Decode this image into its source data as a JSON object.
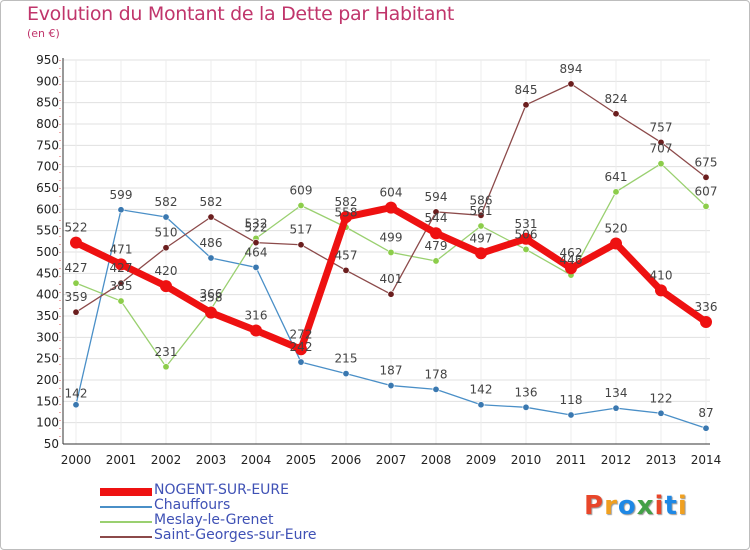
{
  "header": {
    "title": "Evolution du Montant de la Dette par Habitant",
    "subtitle": "(en €)"
  },
  "logo": {
    "letters": [
      "P",
      "r",
      "o",
      "x",
      "i",
      "t",
      "i"
    ],
    "colors": [
      "#e8462a",
      "#f0a020",
      "#1e88e5",
      "#43a047",
      "#e8462a",
      "#1e88e5",
      "#f0a020"
    ]
  },
  "chart_data": {
    "type": "line",
    "title": "Evolution du Montant de la Dette par Habitant",
    "subtitle": "(en €)",
    "x": [
      "2000",
      "2001",
      "2002",
      "2003",
      "2004",
      "2005",
      "2006",
      "2007",
      "2008",
      "2009",
      "2010",
      "2011",
      "2012",
      "2013",
      "2014"
    ],
    "ylim": [
      50,
      950
    ],
    "yticks": [
      50,
      100,
      150,
      200,
      250,
      300,
      350,
      400,
      450,
      500,
      550,
      600,
      650,
      700,
      750,
      800,
      850,
      900,
      950
    ],
    "grid": true,
    "legend_position": "bottom-left",
    "series": [
      {
        "name": "Chauffours",
        "color": "#4a8fc7",
        "marker": "#3a78b0",
        "width": 1.3,
        "values": [
          142,
          599,
          582,
          486,
          464,
          242,
          215,
          187,
          178,
          142,
          136,
          118,
          134,
          122,
          87
        ]
      },
      {
        "name": "Meslay-le-Grenet",
        "color": "#9ad070",
        "marker": "#8ccd4a",
        "width": 1.3,
        "values": [
          427,
          385,
          231,
          366,
          532,
          609,
          558,
          499,
          479,
          561,
          506,
          446,
          641,
          707,
          607
        ]
      },
      {
        "name": "Saint-Georges-sur-Eure",
        "color": "#8c4a4a",
        "marker": "#6b1e1e",
        "width": 1.3,
        "values": [
          359,
          427,
          510,
          582,
          522,
          517,
          457,
          401,
          594,
          586,
          845,
          894,
          824,
          757,
          675
        ]
      },
      {
        "name": "NOGENT-SUR-EURE",
        "color": "#ee1111",
        "marker": "#ee1111",
        "width": 7,
        "values": [
          522,
          471,
          420,
          358,
          316,
          272,
          582,
          604,
          544,
          497,
          531,
          462,
          520,
          410,
          336
        ]
      }
    ],
    "labels": [
      {
        "series": 0,
        "items": [
          [
            "142",
            0,
            -7
          ],
          [
            "599",
            0,
            -11
          ],
          [
            "582",
            0,
            -11
          ],
          [
            "486",
            0,
            -11
          ],
          [
            "464",
            0,
            -11
          ],
          [
            "242",
            0,
            -11
          ],
          [
            "215",
            0,
            -11
          ],
          [
            "187",
            0,
            -11
          ],
          [
            "178",
            0,
            -11
          ],
          [
            "142",
            0,
            -11
          ],
          [
            "136",
            0,
            -11
          ],
          [
            "118",
            0,
            -11
          ],
          [
            "134",
            0,
            -11
          ],
          [
            "122",
            0,
            -11
          ],
          [
            "87",
            0,
            -11
          ]
        ]
      },
      {
        "series": 1,
        "items": [
          [
            "427",
            0,
            -11
          ],
          [
            "385",
            0,
            -11
          ],
          [
            "231",
            0,
            -11
          ],
          [
            "366",
            0,
            -11
          ],
          [
            "532",
            0,
            -11
          ],
          [
            "609",
            0,
            -11
          ],
          [
            "558",
            0,
            -11
          ],
          [
            "499",
            0,
            -11
          ],
          [
            "479",
            0,
            -11
          ],
          [
            "561",
            0,
            -11
          ],
          [
            "506",
            0,
            -11
          ],
          [
            "446",
            0,
            -11
          ],
          [
            "641",
            0,
            -11
          ],
          [
            "707",
            0,
            -11
          ],
          [
            "607",
            0,
            -11
          ]
        ]
      },
      {
        "series": 2,
        "items": [
          [
            "359",
            0,
            -11
          ],
          [
            "427",
            0,
            -11
          ],
          [
            "510",
            0,
            -11
          ],
          [
            "582",
            0,
            -11
          ],
          [
            "522",
            0,
            -11
          ],
          [
            "517",
            0,
            -11
          ],
          [
            "457",
            0,
            -11
          ],
          [
            "401",
            0,
            -11
          ],
          [
            "594",
            0,
            -11
          ],
          [
            "586",
            0,
            -11
          ],
          [
            "845",
            0,
            -11
          ],
          [
            "894",
            0,
            -11
          ],
          [
            "824",
            0,
            -11
          ],
          [
            "757",
            0,
            -11
          ],
          [
            "675",
            0,
            -11
          ]
        ]
      },
      {
        "series": 3,
        "items": [
          [
            "522",
            0,
            -11
          ],
          [
            "471",
            0,
            -11
          ],
          [
            "420",
            0,
            -11
          ],
          [
            "358",
            0,
            -11
          ],
          [
            "316",
            0,
            -11
          ],
          [
            "272",
            0,
            -11
          ],
          [
            "582",
            0,
            -11
          ],
          [
            "604",
            0,
            -11
          ],
          [
            "544",
            0,
            -11
          ],
          [
            "497",
            0,
            -11
          ],
          [
            "531",
            0,
            -11
          ],
          [
            "462",
            0,
            -11
          ],
          [
            "520",
            0,
            -11
          ],
          [
            "410",
            0,
            -11
          ],
          [
            "336",
            0,
            -11
          ]
        ]
      }
    ]
  },
  "legend": [
    {
      "name": "NOGENT-SUR-EURE",
      "color": "#ee1111",
      "thickness": 8
    },
    {
      "name": "Chauffours",
      "color": "#4a8fc7",
      "thickness": 2
    },
    {
      "name": "Meslay-le-Grenet",
      "color": "#9ad070",
      "thickness": 2
    },
    {
      "name": "Saint-Georges-sur-Eure",
      "color": "#8c4a4a",
      "thickness": 2
    }
  ]
}
